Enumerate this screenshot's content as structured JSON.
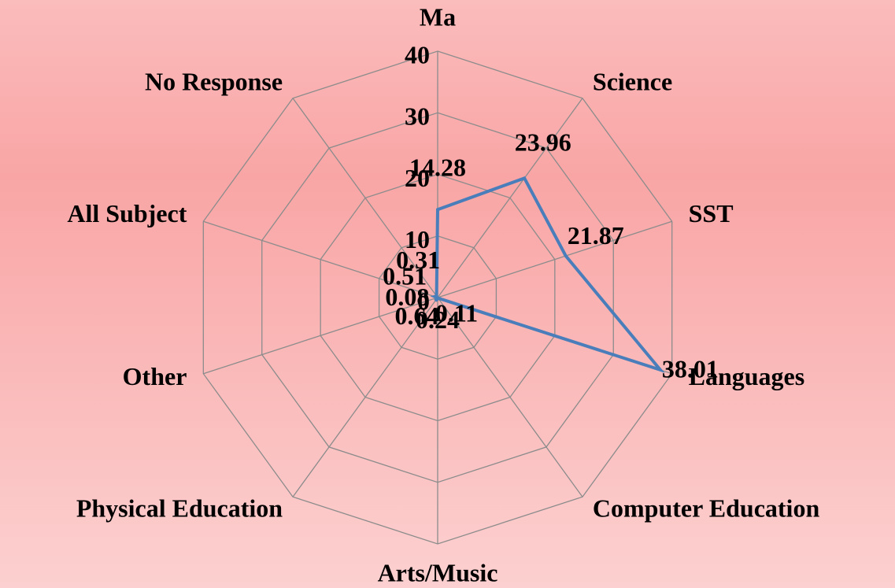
{
  "chart_data": {
    "type": "radar",
    "categories": [
      "Ma",
      "Science",
      "SST",
      "Languages",
      "Computer Education",
      "Arts/Music",
      "Physical Education",
      "Other",
      "All Subject",
      "No Response"
    ],
    "series": [
      {
        "color": "#4a7ebb",
        "values": [
          14.28,
          23.96,
          21.87,
          38.01,
          0.11,
          0.24,
          0.64,
          0.08,
          0.51,
          0.31
        ]
      }
    ],
    "ylim": [
      0,
      40
    ],
    "yticks": [
      0,
      10,
      20,
      30,
      40
    ],
    "grid": true
  }
}
